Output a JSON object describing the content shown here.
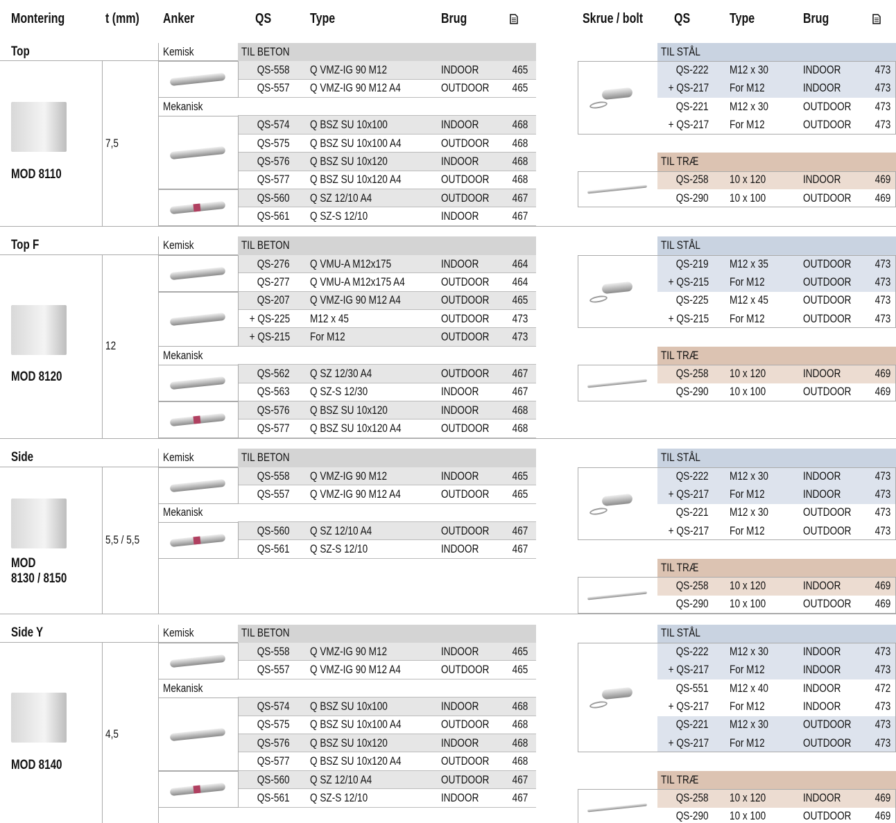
{
  "header": {
    "columns": [
      "Montering",
      "t (mm)",
      "Anker",
      "QS",
      "Type",
      "Brug",
      "Skrue / bolt",
      "QS",
      "Type",
      "Brug"
    ]
  },
  "sections": [
    {
      "name": "Top",
      "model": [
        "MOD 8110"
      ],
      "t": "7,5",
      "anchor": [
        {
          "label": "Kemisk",
          "header": "TIL BETON",
          "items": [
            [
              [
                "QS-558",
                "Q VMZ-IG 90 M12",
                "INDOOR",
                465
              ],
              [
                "QS-557",
                "Q VMZ-IG 90 M12 A4",
                "OUTDOOR",
                465
              ]
            ]
          ]
        },
        {
          "label": "Mekanisk",
          "items": [
            [
              [
                "QS-574",
                "Q BSZ SU 10x100",
                "INDOOR",
                468
              ],
              [
                "QS-575",
                "Q BSZ SU 10x100 A4",
                "OUTDOOR",
                468
              ],
              [
                "QS-576",
                "Q BSZ SU 10x120",
                "INDOOR",
                468
              ],
              [
                "QS-577",
                "Q BSZ SU 10x120 A4",
                "OUTDOOR",
                468
              ]
            ],
            [
              [
                "QS-560",
                "Q SZ 12/10 A4",
                "OUTDOOR",
                467
              ],
              [
                "QS-561",
                "Q SZ-S 12/10",
                "INDOOR",
                467
              ]
            ]
          ]
        }
      ],
      "steel": {
        "header": "TIL STÅL",
        "rows": [
          [
            "QS-222",
            "M12 x 30",
            "INDOOR",
            473
          ],
          [
            "+ QS-217",
            "For M12",
            "INDOOR",
            473
          ],
          [
            "QS-221",
            "M12 x 30",
            "OUTDOOR",
            473
          ],
          [
            "+ QS-217",
            "For M12",
            "OUTDOOR",
            473
          ]
        ]
      },
      "wood": {
        "header": "TIL TRÆ",
        "rows": [
          [
            "QS-258",
            "10 x 120",
            "INDOOR",
            469
          ],
          [
            "QS-290",
            "10 x 100",
            "OUTDOOR",
            469
          ]
        ]
      }
    },
    {
      "name": "Top F",
      "model": [
        "MOD 8120"
      ],
      "t": "12",
      "anchor": [
        {
          "label": "Kemisk",
          "header": "TIL BETON",
          "items": [
            [
              [
                "QS-276",
                "Q VMU-A M12x175",
                "INDOOR",
                464
              ],
              [
                "QS-277",
                "Q VMU-A M12x175 A4",
                "OUTDOOR",
                464
              ]
            ],
            [
              [
                "QS-207",
                "Q VMZ-IG 90 M12 A4",
                "OUTDOOR",
                465
              ],
              [
                "+ QS-225",
                "M12 x 45",
                "OUTDOOR",
                473
              ],
              [
                "+ QS-215",
                "For M12",
                "OUTDOOR",
                473
              ]
            ]
          ]
        },
        {
          "label": "Mekanisk",
          "items": [
            [
              [
                "QS-562",
                "Q SZ 12/30 A4",
                "OUTDOOR",
                467
              ],
              [
                "QS-563",
                "Q SZ-S 12/30",
                "INDOOR",
                467
              ]
            ],
            [
              [
                "QS-576",
                "Q BSZ SU 10x120",
                "INDOOR",
                468
              ],
              [
                "QS-577",
                "Q BSZ SU 10x120 A4",
                "OUTDOOR",
                468
              ]
            ]
          ]
        }
      ],
      "steel": {
        "header": "TIL STÅL",
        "rows": [
          [
            "QS-219",
            "M12 x 35",
            "OUTDOOR",
            473
          ],
          [
            "+ QS-215",
            "For M12",
            "OUTDOOR",
            473
          ],
          [
            "QS-225",
            "M12 x 45",
            "OUTDOOR",
            473
          ],
          [
            "+ QS-215",
            "For M12",
            "OUTDOOR",
            473
          ]
        ]
      },
      "wood": {
        "header": "TIL TRÆ",
        "rows": [
          [
            "QS-258",
            "10 x 120",
            "INDOOR",
            469
          ],
          [
            "QS-290",
            "10 x 100",
            "OUTDOOR",
            469
          ]
        ]
      }
    },
    {
      "name": "Side",
      "model": [
        "MOD",
        "8130 / 8150"
      ],
      "t": "5,5 / 5,5",
      "anchor": [
        {
          "label": "Kemisk",
          "header": "TIL BETON",
          "items": [
            [
              [
                "QS-558",
                "Q VMZ-IG 90 M12",
                "INDOOR",
                465
              ],
              [
                "QS-557",
                "Q VMZ-IG 90 M12 A4",
                "OUTDOOR",
                465
              ]
            ]
          ]
        },
        {
          "label": "Mekanisk",
          "items": [
            [
              [
                "QS-560",
                "Q SZ 12/10 A4",
                "OUTDOOR",
                467
              ],
              [
                "QS-561",
                "Q SZ-S 12/10",
                "INDOOR",
                467
              ]
            ]
          ]
        }
      ],
      "steel": {
        "header": "TIL STÅL",
        "rows": [
          [
            "QS-222",
            "M12 x 30",
            "INDOOR",
            473
          ],
          [
            "+ QS-217",
            "For M12",
            "INDOOR",
            473
          ],
          [
            "QS-221",
            "M12 x 30",
            "OUTDOOR",
            473
          ],
          [
            "+ QS-217",
            "For M12",
            "OUTDOOR",
            473
          ]
        ]
      },
      "wood": {
        "header": "TIL TRÆ",
        "rows": [
          [
            "QS-258",
            "10 x 120",
            "INDOOR",
            469
          ],
          [
            "QS-290",
            "10 x 100",
            "OUTDOOR",
            469
          ]
        ]
      }
    },
    {
      "name": "Side Y",
      "model": [
        "MOD 8140"
      ],
      "t": "4,5",
      "anchor": [
        {
          "label": "Kemisk",
          "header": "TIL BETON",
          "items": [
            [
              [
                "QS-558",
                "Q VMZ-IG 90 M12",
                "INDOOR",
                465
              ],
              [
                "QS-557",
                "Q VMZ-IG 90 M12 A4",
                "OUTDOOR",
                465
              ]
            ]
          ]
        },
        {
          "label": "Mekanisk",
          "items": [
            [
              [
                "QS-574",
                "Q BSZ SU 10x100",
                "INDOOR",
                468
              ],
              [
                "QS-575",
                "Q BSZ SU 10x100 A4",
                "OUTDOOR",
                468
              ],
              [
                "QS-576",
                "Q BSZ SU 10x120",
                "INDOOR",
                468
              ],
              [
                "QS-577",
                "Q BSZ SU 10x120 A4",
                "OUTDOOR",
                468
              ]
            ],
            [
              [
                "QS-560",
                "Q SZ 12/10 A4",
                "OUTDOOR",
                467
              ],
              [
                "QS-561",
                "Q SZ-S 12/10",
                "INDOOR",
                467
              ]
            ]
          ]
        }
      ],
      "steel": {
        "header": "TIL STÅL",
        "rows": [
          [
            "QS-222",
            "M12 x 30",
            "INDOOR",
            473
          ],
          [
            "+ QS-217",
            "For M12",
            "INDOOR",
            473
          ],
          [
            "QS-551",
            "M12 x 40",
            "INDOOR",
            472
          ],
          [
            "+ QS-217",
            "For M12",
            "INDOOR",
            473
          ],
          [
            "QS-221",
            "M12 x 30",
            "OUTDOOR",
            473
          ],
          [
            "+ QS-217",
            "For M12",
            "OUTDOOR",
            473
          ]
        ]
      },
      "wood": {
        "header": "TIL TRÆ",
        "rows": [
          [
            "QS-258",
            "10 x 120",
            "INDOOR",
            469
          ],
          [
            "QS-290",
            "10 x 100",
            "OUTDOOR",
            469
          ]
        ]
      }
    }
  ]
}
